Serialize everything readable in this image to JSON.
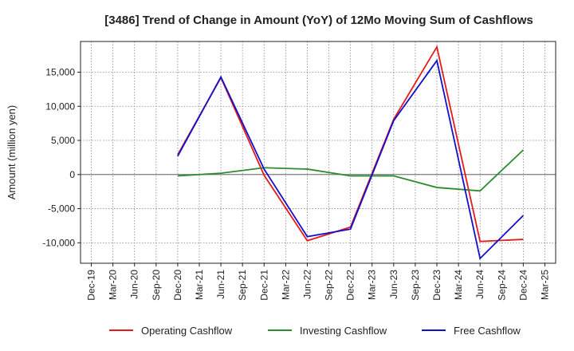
{
  "chart_data": {
    "type": "line",
    "title": "[3486]  Trend of Change in Amount (YoY) of 12Mo Moving Sum of Cashflows",
    "xlabel": "",
    "ylabel": "Amount (million yen)",
    "ylim": [
      -13000,
      19500
    ],
    "yticks": [
      -10000,
      -5000,
      0,
      5000,
      10000,
      15000
    ],
    "ytick_labels": [
      "-10,000",
      "-5,000",
      "0",
      "5,000",
      "10,000",
      "15,000"
    ],
    "categories": [
      "Dec-19",
      "Mar-20",
      "Jun-20",
      "Sep-20",
      "Dec-20",
      "Mar-21",
      "Jun-21",
      "Sep-21",
      "Dec-21",
      "Mar-22",
      "Jun-22",
      "Sep-22",
      "Dec-22",
      "Mar-23",
      "Jun-23",
      "Sep-23",
      "Dec-23",
      "Mar-24",
      "Jun-24",
      "Sep-24",
      "Dec-24",
      "Mar-25"
    ],
    "grid": true,
    "legend_position": "bottom",
    "series": [
      {
        "name": "Operating Cashflow",
        "color": "#e41a1c",
        "values": [
          null,
          null,
          null,
          null,
          2900,
          null,
          14200,
          null,
          -100,
          null,
          -9700,
          null,
          -7700,
          null,
          8100,
          null,
          18700,
          null,
          -9800,
          null,
          -9500,
          null
        ]
      },
      {
        "name": "Investing Cashflow",
        "color": "#2e8b2e",
        "values": [
          null,
          null,
          null,
          null,
          -200,
          null,
          200,
          null,
          1000,
          null,
          800,
          null,
          -200,
          null,
          -200,
          null,
          -1900,
          null,
          -2400,
          null,
          3600,
          null
        ]
      },
      {
        "name": "Free Cashflow",
        "color": "#1010cc",
        "values": [
          null,
          null,
          null,
          null,
          2700,
          null,
          14300,
          null,
          800,
          null,
          -9100,
          null,
          -8000,
          null,
          7900,
          null,
          16700,
          null,
          -12300,
          null,
          -6000,
          null
        ]
      }
    ]
  }
}
